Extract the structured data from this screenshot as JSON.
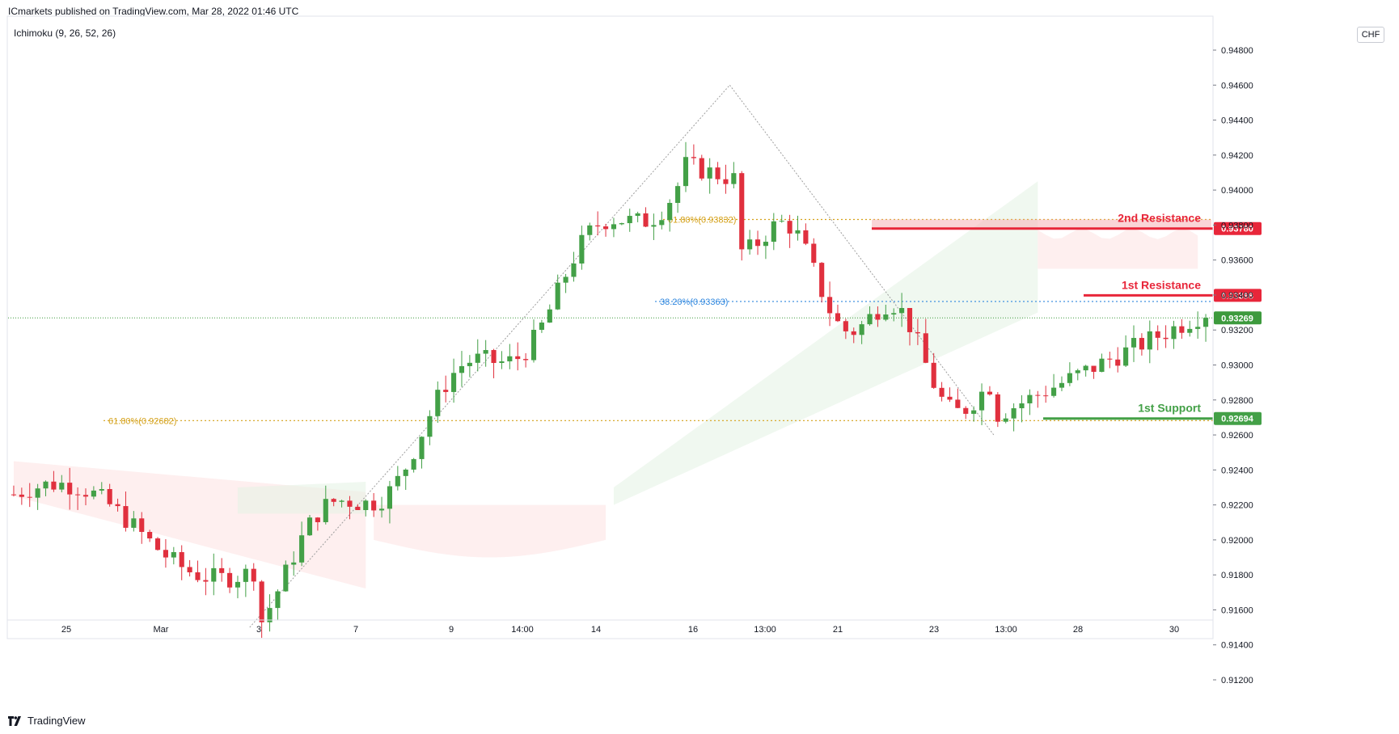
{
  "header": {
    "published": "ICmarkets published on TradingView.com, Mar 28, 2022 01:46 UTC",
    "indicator": "Ichimoku (9, 26, 52, 26)",
    "currency": "CHF"
  },
  "footer": {
    "brand": "TradingView"
  },
  "colors": {
    "up": "#43a047",
    "down": "#e0303e",
    "resistance": "#e8263a",
    "support": "#43a047",
    "fib_orange": "#d4a017",
    "fib_blue": "#2e86de",
    "last_price": "#3d9a3d"
  },
  "chart_data": {
    "type": "candlestick",
    "symbol_currency": "CHF",
    "y_ticks": [
      "0.94800",
      "0.94600",
      "0.94400",
      "0.94200",
      "0.94000",
      "0.93800",
      "0.93600",
      "0.93400",
      "0.93200",
      "0.93000",
      "0.92800",
      "0.92600",
      "0.92400",
      "0.92200",
      "0.92000",
      "0.91800",
      "0.91600",
      "0.91400",
      "0.91200"
    ],
    "ylim": [
      0.912,
      0.948
    ],
    "x_ticks": [
      "25",
      "Mar",
      "3",
      "7",
      "9",
      "14:00",
      "14",
      "16",
      "13:00",
      "21",
      "23",
      "13:00",
      "28",
      "30"
    ],
    "levels": [
      {
        "name": "2nd Resistance",
        "value": 0.9378,
        "tag": "0.93780"
      },
      {
        "name": "1st Resistance",
        "value": 0.93398,
        "tag": "0.93398"
      },
      {
        "name": "1st Support",
        "value": 0.92694,
        "tag": "0.92694"
      }
    ],
    "fib_labels": [
      {
        "text": "61.80%(0.93832)",
        "value": 0.93832
      },
      {
        "text": "38.20%(0.93363)",
        "value": 0.93363
      },
      {
        "text": "61.80%(0.92682)",
        "value": 0.92682
      }
    ],
    "last_price": {
      "value": 0.93269,
      "tag": "0.93269"
    },
    "swings": [
      {
        "x": 0.2,
        "value": 0.915
      },
      {
        "x": 0.6,
        "value": 0.946
      },
      {
        "x": 0.82,
        "value": 0.926
      }
    ],
    "candles": []
  }
}
